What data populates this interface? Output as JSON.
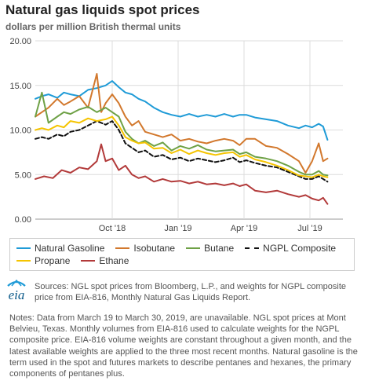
{
  "header": {
    "title": "Natural gas liquids spot prices",
    "subtitle": "dollars per million British thermal units"
  },
  "footer": {
    "logo_text": "eia",
    "sources": "Sources: NGL spot prices from Bloomberg, L.P., and weights for NGPL composite price from EIA-816, Monthly Natural Gas Liquids Report.",
    "notes": "Notes: Data from March 19 to March 30, 2019, are unavailable. NGL spot prices at Mont Belvieu, Texas. Monthly volumes from EIA-816 used to calculate weights for the NGPL composite price. EIA-816 volume weights are constant throughout a given month, and the latest available weights are applied to the three most recent months. Natural gasoline is the term used in the spot and futures markets to describe pentanes and hexanes, the primary components of pentanes plus."
  },
  "chart_data": {
    "type": "line",
    "title": "Natural gas liquids spot prices",
    "ylabel": "dollars per million British thermal units",
    "ylim": [
      0,
      20
    ],
    "yticks": [
      "0.00",
      "5.00",
      "10.00",
      "15.00",
      "20.00"
    ],
    "xlim": [
      0,
      14
    ],
    "xticks": [
      {
        "x": 3.5,
        "label": "Oct '18"
      },
      {
        "x": 6.5,
        "label": "Jan '19"
      },
      {
        "x": 9.5,
        "label": "Apr '19"
      },
      {
        "x": 12.5,
        "label": "Jul '19"
      }
    ],
    "grid": true,
    "legend_position": "bottom",
    "series": [
      {
        "name": "Natural Gasoline",
        "color": "#1f9bd7",
        "dash": false,
        "x": [
          0,
          0.3,
          0.6,
          1.0,
          1.3,
          1.6,
          2.0,
          2.4,
          2.8,
          3.2,
          3.5,
          3.8,
          4.1,
          4.4,
          4.7,
          5.0,
          5.4,
          5.8,
          6.2,
          6.6,
          7.0,
          7.4,
          7.8,
          8.2,
          8.6,
          9.0,
          9.3,
          9.6,
          10.0,
          10.5,
          11.0,
          11.5,
          12.0,
          12.3,
          12.6,
          12.9,
          13.1,
          13.3
        ],
        "y": [
          13.5,
          13.8,
          14.0,
          13.6,
          14.2,
          14.0,
          13.8,
          14.5,
          14.7,
          15.0,
          15.5,
          14.8,
          14.2,
          14.0,
          13.5,
          13.2,
          12.5,
          12.0,
          11.7,
          11.5,
          11.8,
          11.5,
          11.7,
          11.5,
          11.8,
          11.5,
          11.7,
          11.7,
          11.4,
          11.2,
          11.0,
          10.5,
          10.2,
          10.5,
          10.3,
          10.7,
          10.4,
          8.9
        ]
      },
      {
        "name": "Isobutane",
        "color": "#d2782d",
        "dash": false,
        "x": [
          0,
          0.3,
          0.6,
          1.0,
          1.3,
          1.6,
          2.0,
          2.4,
          2.8,
          3.0,
          3.2,
          3.5,
          3.8,
          4.1,
          4.4,
          4.7,
          5.0,
          5.4,
          5.8,
          6.2,
          6.6,
          7.0,
          7.4,
          7.8,
          8.2,
          8.6,
          9.0,
          9.3,
          9.6,
          10.0,
          10.5,
          11.0,
          11.5,
          12.0,
          12.3,
          12.6,
          12.9,
          13.1,
          13.3
        ],
        "y": [
          11.5,
          12.0,
          12.5,
          13.5,
          12.8,
          13.2,
          13.8,
          12.5,
          16.3,
          12.0,
          13.0,
          14.0,
          13.0,
          11.5,
          10.5,
          11.0,
          9.8,
          9.5,
          9.2,
          9.5,
          8.8,
          9.0,
          8.7,
          8.5,
          8.8,
          9.0,
          8.8,
          8.3,
          9.0,
          9.0,
          8.2,
          8.0,
          7.3,
          6.5,
          5.2,
          6.5,
          8.5,
          6.5,
          6.8
        ]
      },
      {
        "name": "Butane",
        "color": "#6ea146",
        "dash": false,
        "x": [
          0,
          0.3,
          0.6,
          1.0,
          1.3,
          1.6,
          2.0,
          2.4,
          2.8,
          3.2,
          3.5,
          3.8,
          4.1,
          4.4,
          4.7,
          5.0,
          5.4,
          5.8,
          6.2,
          6.6,
          7.0,
          7.4,
          7.8,
          8.2,
          8.6,
          9.0,
          9.3,
          9.6,
          10.0,
          10.5,
          11.0,
          11.5,
          12.0,
          12.3,
          12.6,
          12.9,
          13.1,
          13.3
        ],
        "y": [
          11.5,
          14.2,
          10.8,
          11.5,
          12.0,
          11.8,
          12.3,
          12.6,
          12.0,
          12.5,
          12.0,
          11.5,
          9.8,
          9.0,
          8.5,
          8.8,
          8.2,
          8.6,
          7.7,
          8.2,
          7.9,
          8.3,
          7.8,
          7.6,
          7.7,
          7.8,
          7.3,
          7.5,
          7.0,
          6.8,
          6.5,
          6.0,
          5.3,
          5.0,
          5.0,
          5.4,
          5.0,
          4.9
        ]
      },
      {
        "name": "NGPL Composite",
        "color": "#111111",
        "dash": true,
        "x": [
          0,
          0.3,
          0.6,
          1.0,
          1.3,
          1.6,
          2.0,
          2.4,
          2.8,
          3.2,
          3.5,
          3.8,
          4.1,
          4.4,
          4.7,
          5.0,
          5.4,
          5.8,
          6.2,
          6.6,
          7.0,
          7.4,
          7.8,
          8.2,
          8.6,
          9.0,
          9.3,
          9.6,
          10.0,
          10.5,
          11.0,
          11.5,
          12.0,
          12.3,
          12.6,
          12.9,
          13.1,
          13.3
        ],
        "y": [
          9.0,
          9.2,
          9.0,
          9.5,
          9.3,
          9.8,
          10.0,
          10.5,
          11.0,
          10.6,
          11.0,
          10.0,
          8.5,
          8.0,
          7.5,
          7.7,
          7.0,
          7.2,
          6.7,
          6.9,
          6.5,
          6.8,
          6.6,
          6.4,
          6.6,
          6.9,
          6.4,
          6.6,
          6.3,
          6.0,
          5.8,
          5.3,
          4.8,
          4.5,
          4.5,
          4.8,
          4.5,
          4.2
        ]
      },
      {
        "name": "Propane",
        "color": "#f5c400",
        "dash": false,
        "x": [
          0,
          0.3,
          0.6,
          1.0,
          1.3,
          1.6,
          2.0,
          2.4,
          2.8,
          3.2,
          3.5,
          3.8,
          4.1,
          4.4,
          4.7,
          5.0,
          5.4,
          5.8,
          6.2,
          6.6,
          7.0,
          7.4,
          7.8,
          8.2,
          8.6,
          9.0,
          9.3,
          9.6,
          10.0,
          10.5,
          11.0,
          11.5,
          12.0,
          12.3,
          12.6,
          12.9,
          13.1,
          13.3
        ],
        "y": [
          10.0,
          10.2,
          10.0,
          10.5,
          10.3,
          11.0,
          10.8,
          11.3,
          11.0,
          11.2,
          11.5,
          10.5,
          9.2,
          8.8,
          8.5,
          8.6,
          7.9,
          8.0,
          7.4,
          7.8,
          7.3,
          7.7,
          7.4,
          7.2,
          7.4,
          7.5,
          7.0,
          7.2,
          6.7,
          6.4,
          6.0,
          5.5,
          4.9,
          4.8,
          4.7,
          5.0,
          4.8,
          4.7
        ]
      },
      {
        "name": "Ethane",
        "color": "#b23a3a",
        "dash": false,
        "x": [
          0,
          0.4,
          0.8,
          1.2,
          1.6,
          2.0,
          2.4,
          2.8,
          3.0,
          3.2,
          3.5,
          3.8,
          4.1,
          4.4,
          4.7,
          5.0,
          5.4,
          5.8,
          6.2,
          6.6,
          7.0,
          7.4,
          7.8,
          8.2,
          8.6,
          9.0,
          9.3,
          9.6,
          10.0,
          10.5,
          11.0,
          11.5,
          12.0,
          12.3,
          12.6,
          12.9,
          13.1,
          13.3
        ],
        "y": [
          4.5,
          4.8,
          4.6,
          5.5,
          5.2,
          5.8,
          5.6,
          6.5,
          8.4,
          6.5,
          6.8,
          5.5,
          6.0,
          5.0,
          4.6,
          4.8,
          4.2,
          4.5,
          4.2,
          4.3,
          4.0,
          4.2,
          3.9,
          4.0,
          3.8,
          4.0,
          3.7,
          3.9,
          3.2,
          3.0,
          3.2,
          2.8,
          2.5,
          2.7,
          2.3,
          2.1,
          2.4,
          1.7
        ]
      }
    ]
  }
}
